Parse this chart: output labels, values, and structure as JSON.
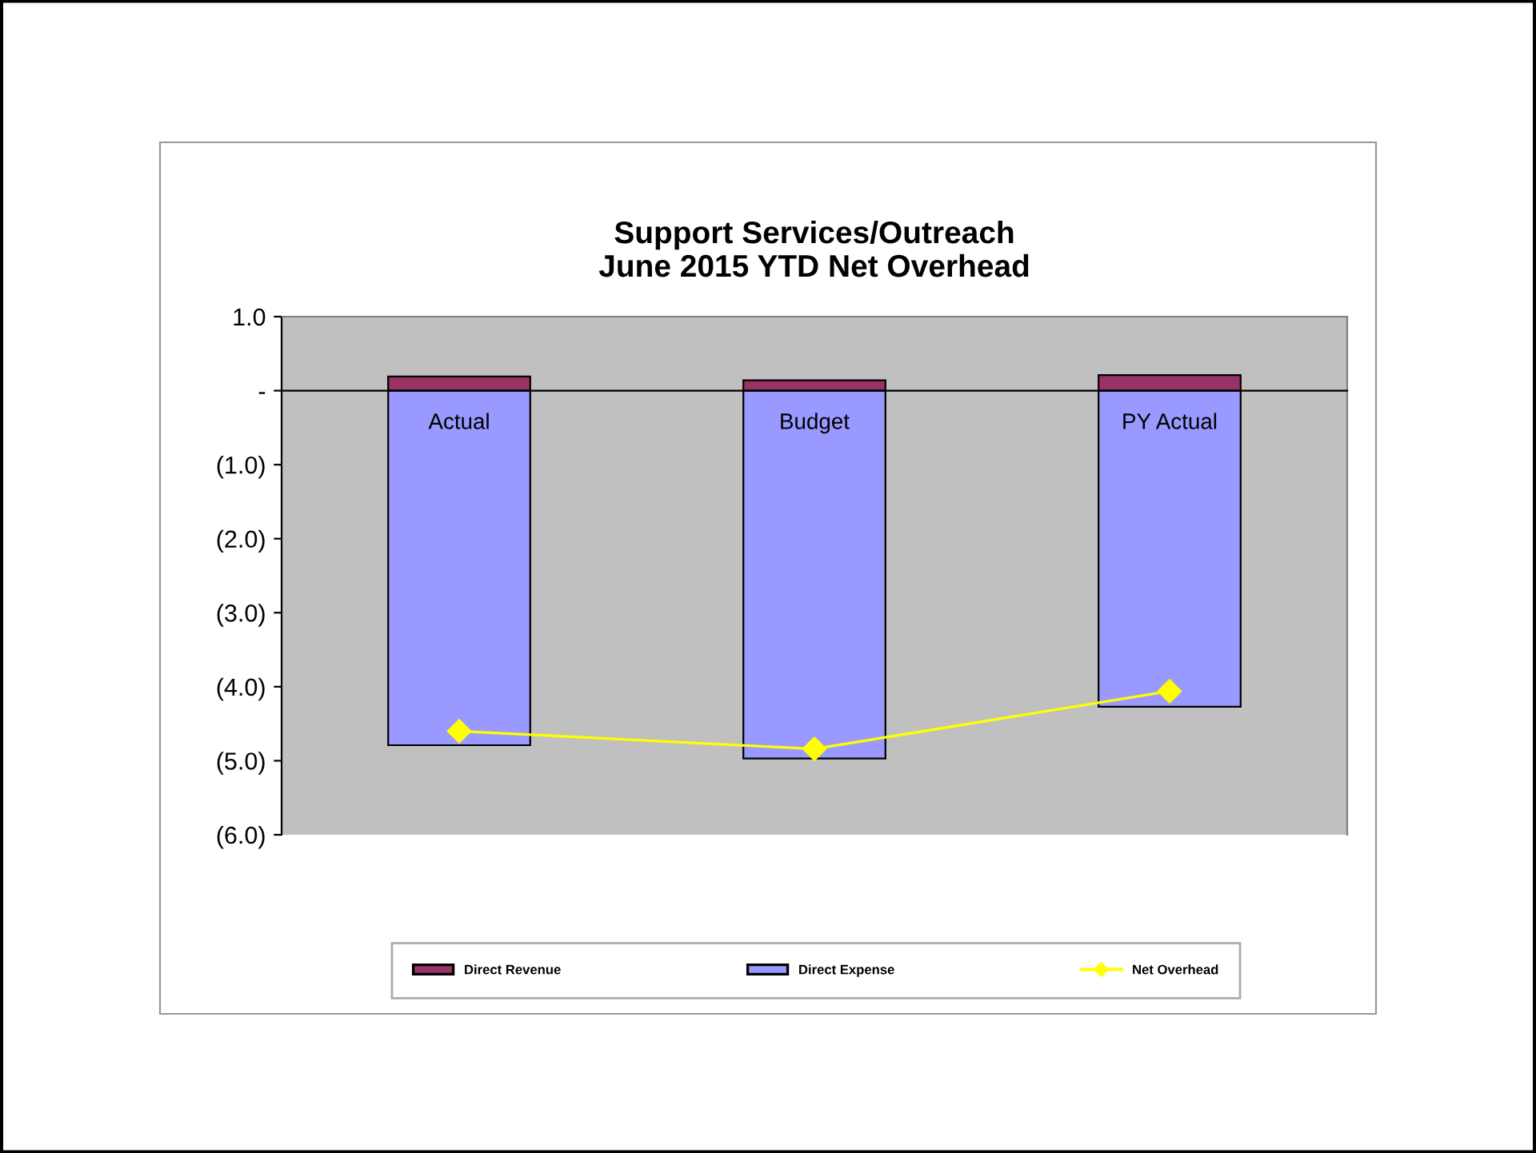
{
  "chart_data": {
    "type": "bar",
    "stacked": true,
    "title": "Support Services/Outreach\nJune 2015 YTD Net Overhead",
    "categories": [
      "Actual",
      "Budget",
      "PY Actual"
    ],
    "series": [
      {
        "name": "Direct Revenue",
        "color": "#993366",
        "values": [
          0.19,
          0.14,
          0.21
        ]
      },
      {
        "name": "Direct Expense",
        "color": "#9999ff",
        "values": [
          -4.79,
          -4.97,
          -4.27
        ]
      },
      {
        "name": "Net Overhead",
        "type": "line",
        "color": "#ffff00",
        "marker": "diamond",
        "values": [
          -4.6,
          -4.84,
          -4.06
        ]
      }
    ],
    "ylim": [
      -6.0,
      1.0
    ],
    "yticks": [
      {
        "value": 1.0,
        "label": "1.0"
      },
      {
        "value": 0,
        "label": "-"
      },
      {
        "value": -1.0,
        "label": "(1.0)"
      },
      {
        "value": -2.0,
        "label": "(2.0)"
      },
      {
        "value": -3.0,
        "label": "(3.0)"
      },
      {
        "value": -4.0,
        "label": "(4.0)"
      },
      {
        "value": -5.0,
        "label": "(5.0)"
      },
      {
        "value": -6.0,
        "label": "(6.0)"
      }
    ],
    "grid": false,
    "legend": "bottom"
  }
}
